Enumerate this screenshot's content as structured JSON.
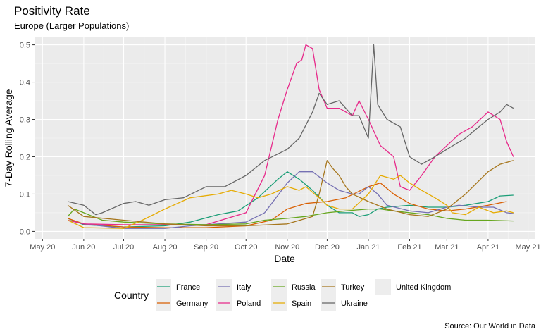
{
  "chart_data": {
    "type": "line",
    "title": "Positivity Rate",
    "subtitle": "Europe (Larger Populations)",
    "xlabel": "Date",
    "ylabel": "7-Day Rolling Average",
    "caption": "Source:  Our World in Data",
    "x_ticks": [
      "May 20",
      "Jun 20",
      "Jul 20",
      "Aug 20",
      "Sep 20",
      "Oct 20",
      "Nov 20",
      "Dec 20",
      "Jan 21",
      "Feb 21",
      "Mar 21",
      "Apr 21",
      "May 21"
    ],
    "y_ticks": [
      "0.0",
      "0.1",
      "0.2",
      "0.3",
      "0.4",
      "0.5"
    ],
    "ylim": [
      -0.02,
      0.52
    ],
    "xlim": [
      "2020-04-25",
      "2021-05-06"
    ],
    "legend": {
      "title": "Country",
      "position": "bottom"
    },
    "grid": true,
    "series": [
      {
        "name": "France",
        "color": "#1b9e77",
        "points": [
          [
            "2020-05-20",
            0.035
          ],
          [
            "2020-06-01",
            0.018
          ],
          [
            "2020-07-01",
            0.012
          ],
          [
            "2020-08-01",
            0.015
          ],
          [
            "2020-08-20",
            0.025
          ],
          [
            "2020-09-10",
            0.045
          ],
          [
            "2020-09-25",
            0.055
          ],
          [
            "2020-10-10",
            0.09
          ],
          [
            "2020-10-25",
            0.14
          ],
          [
            "2020-11-01",
            0.16
          ],
          [
            "2020-11-10",
            0.14
          ],
          [
            "2020-11-20",
            0.11
          ],
          [
            "2020-12-01",
            0.07
          ],
          [
            "2020-12-10",
            0.05
          ],
          [
            "2020-12-20",
            0.05
          ],
          [
            "2020-12-25",
            0.04
          ],
          [
            "2021-01-01",
            0.045
          ],
          [
            "2021-01-08",
            0.06
          ],
          [
            "2021-01-15",
            0.065
          ],
          [
            "2021-02-01",
            0.07
          ],
          [
            "2021-02-15",
            0.065
          ],
          [
            "2021-03-01",
            0.065
          ],
          [
            "2021-03-15",
            0.07
          ],
          [
            "2021-04-01",
            0.08
          ],
          [
            "2021-04-10",
            0.095
          ],
          [
            "2021-04-20",
            0.097
          ]
        ]
      },
      {
        "name": "Germany",
        "color": "#d95f02",
        "points": [
          [
            "2020-05-20",
            0.035
          ],
          [
            "2020-06-01",
            0.02
          ],
          [
            "2020-07-01",
            0.012
          ],
          [
            "2020-08-01",
            0.01
          ],
          [
            "2020-09-01",
            0.01
          ],
          [
            "2020-10-01",
            0.015
          ],
          [
            "2020-10-20",
            0.03
          ],
          [
            "2020-11-01",
            0.06
          ],
          [
            "2020-11-15",
            0.075
          ],
          [
            "2020-12-01",
            0.08
          ],
          [
            "2020-12-15",
            0.09
          ],
          [
            "2021-01-01",
            0.12
          ],
          [
            "2021-01-10",
            0.13
          ],
          [
            "2021-01-20",
            0.1
          ],
          [
            "2021-02-01",
            0.075
          ],
          [
            "2021-02-15",
            0.06
          ],
          [
            "2021-03-01",
            0.055
          ],
          [
            "2021-03-15",
            0.06
          ],
          [
            "2021-04-01",
            0.07
          ],
          [
            "2021-04-15",
            0.08
          ]
        ]
      },
      {
        "name": "Italy",
        "color": "#7570b3",
        "points": [
          [
            "2020-05-20",
            0.03
          ],
          [
            "2020-06-01",
            0.02
          ],
          [
            "2020-07-01",
            0.008
          ],
          [
            "2020-08-01",
            0.008
          ],
          [
            "2020-08-20",
            0.015
          ],
          [
            "2020-09-10",
            0.02
          ],
          [
            "2020-10-01",
            0.025
          ],
          [
            "2020-10-15",
            0.05
          ],
          [
            "2020-11-01",
            0.13
          ],
          [
            "2020-11-10",
            0.16
          ],
          [
            "2020-11-20",
            0.16
          ],
          [
            "2020-12-01",
            0.13
          ],
          [
            "2020-12-10",
            0.11
          ],
          [
            "2020-12-20",
            0.1
          ],
          [
            "2020-12-25",
            0.1
          ],
          [
            "2021-01-01",
            0.12
          ],
          [
            "2021-01-08",
            0.1
          ],
          [
            "2021-01-15",
            0.07
          ],
          [
            "2021-02-01",
            0.055
          ],
          [
            "2021-02-15",
            0.05
          ],
          [
            "2021-03-01",
            0.065
          ],
          [
            "2021-03-10",
            0.07
          ],
          [
            "2021-03-25",
            0.065
          ],
          [
            "2021-04-05",
            0.065
          ],
          [
            "2021-04-15",
            0.05
          ],
          [
            "2021-04-20",
            0.048
          ]
        ]
      },
      {
        "name": "Poland",
        "color": "#e7298a",
        "points": [
          [
            "2020-05-20",
            0.03
          ],
          [
            "2020-06-01",
            0.02
          ],
          [
            "2020-07-01",
            0.018
          ],
          [
            "2020-08-01",
            0.018
          ],
          [
            "2020-09-01",
            0.018
          ],
          [
            "2020-10-01",
            0.05
          ],
          [
            "2020-10-15",
            0.15
          ],
          [
            "2020-10-25",
            0.3
          ],
          [
            "2020-11-01",
            0.38
          ],
          [
            "2020-11-08",
            0.45
          ],
          [
            "2020-11-12",
            0.46
          ],
          [
            "2020-11-15",
            0.5
          ],
          [
            "2020-11-20",
            0.49
          ],
          [
            "2020-11-25",
            0.38
          ],
          [
            "2020-12-01",
            0.33
          ],
          [
            "2020-12-10",
            0.33
          ],
          [
            "2020-12-20",
            0.31
          ],
          [
            "2020-12-25",
            0.35
          ],
          [
            "2021-01-01",
            0.3
          ],
          [
            "2021-01-10",
            0.23
          ],
          [
            "2021-01-20",
            0.2
          ],
          [
            "2021-01-25",
            0.12
          ],
          [
            "2021-02-01",
            0.11
          ],
          [
            "2021-02-10",
            0.15
          ],
          [
            "2021-02-20",
            0.2
          ],
          [
            "2021-03-01",
            0.23
          ],
          [
            "2021-03-10",
            0.26
          ],
          [
            "2021-03-20",
            0.28
          ],
          [
            "2021-04-01",
            0.32
          ],
          [
            "2021-04-10",
            0.3
          ],
          [
            "2021-04-15",
            0.24
          ],
          [
            "2021-04-20",
            0.2
          ]
        ]
      },
      {
        "name": "Russia",
        "color": "#66a61e",
        "points": [
          [
            "2020-05-20",
            0.04
          ],
          [
            "2020-05-25",
            0.06
          ],
          [
            "2020-06-01",
            0.05
          ],
          [
            "2020-06-15",
            0.03
          ],
          [
            "2020-07-01",
            0.025
          ],
          [
            "2020-08-01",
            0.02
          ],
          [
            "2020-09-01",
            0.018
          ],
          [
            "2020-10-01",
            0.02
          ],
          [
            "2020-10-15",
            0.03
          ],
          [
            "2020-11-01",
            0.035
          ],
          [
            "2020-11-15",
            0.04
          ],
          [
            "2020-12-01",
            0.05
          ],
          [
            "2020-12-15",
            0.055
          ],
          [
            "2021-01-01",
            0.06
          ],
          [
            "2021-01-10",
            0.06
          ],
          [
            "2021-01-20",
            0.055
          ],
          [
            "2021-02-01",
            0.05
          ],
          [
            "2021-02-15",
            0.045
          ],
          [
            "2021-03-01",
            0.035
          ],
          [
            "2021-03-15",
            0.03
          ],
          [
            "2021-04-01",
            0.03
          ],
          [
            "2021-04-20",
            0.028
          ]
        ]
      },
      {
        "name": "Spain",
        "color": "#e6ab02",
        "points": [
          [
            "2020-05-20",
            0.03
          ],
          [
            "2020-06-01",
            0.01
          ],
          [
            "2020-07-01",
            0.008
          ],
          [
            "2020-07-15",
            0.03
          ],
          [
            "2020-08-01",
            0.06
          ],
          [
            "2020-08-20",
            0.09
          ],
          [
            "2020-09-10",
            0.1
          ],
          [
            "2020-09-20",
            0.11
          ],
          [
            "2020-10-01",
            0.1
          ],
          [
            "2020-10-10",
            0.09
          ],
          [
            "2020-10-20",
            0.1
          ],
          [
            "2020-11-01",
            0.12
          ],
          [
            "2020-11-10",
            0.11
          ],
          [
            "2020-11-15",
            0.12
          ],
          [
            "2020-11-25",
            0.09
          ],
          [
            "2020-12-01",
            0.07
          ],
          [
            "2020-12-10",
            0.06
          ],
          [
            "2020-12-20",
            0.06
          ],
          [
            "2021-01-01",
            0.1
          ],
          [
            "2021-01-10",
            0.15
          ],
          [
            "2021-01-20",
            0.14
          ],
          [
            "2021-01-25",
            0.15
          ],
          [
            "2021-02-01",
            0.13
          ],
          [
            "2021-02-10",
            0.11
          ],
          [
            "2021-02-20",
            0.09
          ],
          [
            "2021-03-01",
            0.07
          ],
          [
            "2021-03-05",
            0.05
          ],
          [
            "2021-03-15",
            0.045
          ],
          [
            "2021-03-25",
            0.065
          ],
          [
            "2021-04-05",
            0.05
          ],
          [
            "2021-04-15",
            0.055
          ],
          [
            "2021-04-20",
            0.05
          ]
        ]
      },
      {
        "name": "Turkey",
        "color": "#a6761d",
        "points": [
          [
            "2020-05-20",
            0.07
          ],
          [
            "2020-06-01",
            0.04
          ],
          [
            "2020-07-01",
            0.03
          ],
          [
            "2020-08-01",
            0.02
          ],
          [
            "2020-09-01",
            0.015
          ],
          [
            "2020-10-01",
            0.015
          ],
          [
            "2020-11-01",
            0.02
          ],
          [
            "2020-11-20",
            0.04
          ],
          [
            "2020-11-25",
            0.1
          ],
          [
            "2020-12-01",
            0.19
          ],
          [
            "2020-12-05",
            0.17
          ],
          [
            "2020-12-10",
            0.15
          ],
          [
            "2020-12-15",
            0.12
          ],
          [
            "2020-12-20",
            0.1
          ],
          [
            "2021-01-01",
            0.08
          ],
          [
            "2021-01-15",
            0.06
          ],
          [
            "2021-02-01",
            0.045
          ],
          [
            "2021-02-15",
            0.04
          ],
          [
            "2021-03-01",
            0.06
          ],
          [
            "2021-03-15",
            0.1
          ],
          [
            "2021-04-01",
            0.16
          ],
          [
            "2021-04-10",
            0.18
          ],
          [
            "2021-04-20",
            0.19
          ]
        ]
      },
      {
        "name": "Ukraine",
        "color": "#666666",
        "points": [
          [
            "2020-05-20",
            0.08
          ],
          [
            "2020-06-01",
            0.07
          ],
          [
            "2020-06-10",
            0.045
          ],
          [
            "2020-06-15",
            0.05
          ],
          [
            "2020-07-01",
            0.075
          ],
          [
            "2020-07-10",
            0.08
          ],
          [
            "2020-07-20",
            0.07
          ],
          [
            "2020-08-01",
            0.085
          ],
          [
            "2020-08-15",
            0.09
          ],
          [
            "2020-09-01",
            0.12
          ],
          [
            "2020-09-15",
            0.12
          ],
          [
            "2020-10-01",
            0.15
          ],
          [
            "2020-10-15",
            0.19
          ],
          [
            "2020-11-01",
            0.22
          ],
          [
            "2020-11-10",
            0.25
          ],
          [
            "2020-11-20",
            0.32
          ],
          [
            "2020-11-25",
            0.37
          ],
          [
            "2020-12-01",
            0.34
          ],
          [
            "2020-12-10",
            0.35
          ],
          [
            "2020-12-20",
            0.31
          ],
          [
            "2020-12-25",
            0.31
          ],
          [
            "2021-01-01",
            0.25
          ],
          [
            "2021-01-05",
            0.5
          ],
          [
            "2021-01-08",
            0.34
          ],
          [
            "2021-01-15",
            0.3
          ],
          [
            "2021-01-25",
            0.28
          ],
          [
            "2021-02-01",
            0.2
          ],
          [
            "2021-02-10",
            0.18
          ],
          [
            "2021-02-20",
            0.2
          ],
          [
            "2021-03-01",
            0.22
          ],
          [
            "2021-03-15",
            0.25
          ],
          [
            "2021-03-25",
            0.28
          ],
          [
            "2021-04-01",
            0.3
          ],
          [
            "2021-04-10",
            0.32
          ],
          [
            "2021-04-15",
            0.34
          ],
          [
            "2021-04-20",
            0.33
          ]
        ]
      },
      {
        "name": "United Kingdom",
        "color": "#ededed",
        "points": []
      }
    ]
  }
}
